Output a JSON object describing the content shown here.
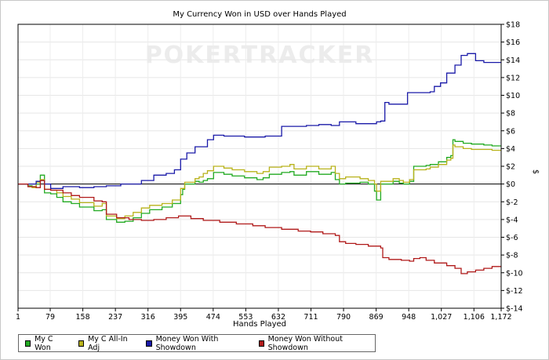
{
  "chart_data": {
    "type": "line",
    "title": "My Currency Won in USD over Hands Played",
    "xlabel": "Hands Played",
    "ylabel": "$",
    "watermark": "POKERTRACKER",
    "xlim": [
      1,
      1172
    ],
    "ylim": [
      -14,
      18
    ],
    "x_ticks": [
      1,
      79,
      158,
      237,
      316,
      395,
      474,
      553,
      632,
      711,
      790,
      869,
      948,
      1027,
      1106,
      1172
    ],
    "x_tick_labels": [
      "1",
      "79",
      "158",
      "237",
      "316",
      "395",
      "474",
      "553",
      "632",
      "711",
      "790",
      "869",
      "948",
      "1,027",
      "1,106",
      "1,172"
    ],
    "y_ticks": [
      -14,
      -12,
      -10,
      -8,
      -6,
      -4,
      -2,
      0,
      2,
      4,
      6,
      8,
      10,
      12,
      14,
      16,
      18
    ],
    "y_tick_labels": [
      "$-14",
      "$-12",
      "$-10",
      "$-8",
      "$-6",
      "$-4",
      "$-2",
      "$0",
      "$2",
      "$4",
      "$6",
      "$8",
      "$10",
      "$12",
      "$14",
      "$16",
      "$18"
    ],
    "grid": true,
    "legend_position": "bottom-left",
    "series": [
      {
        "name": "My C Won",
        "color": "#22aa22",
        "points": [
          [
            1,
            0
          ],
          [
            25,
            -0.2
          ],
          [
            35,
            -0.3
          ],
          [
            45,
            0
          ],
          [
            55,
            1
          ],
          [
            65,
            -1
          ],
          [
            80,
            -1.1
          ],
          [
            95,
            -1.5
          ],
          [
            110,
            -2
          ],
          [
            130,
            -2.2
          ],
          [
            150,
            -2.6
          ],
          [
            185,
            -3
          ],
          [
            205,
            -2.9
          ],
          [
            215,
            -4
          ],
          [
            240,
            -4.3
          ],
          [
            260,
            -4.2
          ],
          [
            280,
            -3.8
          ],
          [
            300,
            -3.3
          ],
          [
            320,
            -2.9
          ],
          [
            350,
            -2.6
          ],
          [
            375,
            -2.2
          ],
          [
            395,
            -1.2
          ],
          [
            400,
            -0.6
          ],
          [
            405,
            0
          ],
          [
            430,
            0.3
          ],
          [
            440,
            0.2
          ],
          [
            450,
            0.4
          ],
          [
            460,
            0.6
          ],
          [
            475,
            1.3
          ],
          [
            500,
            1.1
          ],
          [
            520,
            0.9
          ],
          [
            550,
            0.7
          ],
          [
            580,
            0.5
          ],
          [
            595,
            0.7
          ],
          [
            610,
            1.1
          ],
          [
            640,
            1.3
          ],
          [
            660,
            1.4
          ],
          [
            670,
            1
          ],
          [
            700,
            1.4
          ],
          [
            730,
            1.1
          ],
          [
            760,
            1.3
          ],
          [
            770,
            0.5
          ],
          [
            780,
            0
          ],
          [
            795,
            0.1
          ],
          [
            830,
            0.2
          ],
          [
            850,
            0
          ],
          [
            865,
            -0.8
          ],
          [
            870,
            -1.8
          ],
          [
            880,
            0
          ],
          [
            910,
            0.3
          ],
          [
            925,
            0.1
          ],
          [
            935,
            0
          ],
          [
            950,
            0.3
          ],
          [
            960,
            2
          ],
          [
            975,
            2
          ],
          [
            990,
            2.1
          ],
          [
            1000,
            2.2
          ],
          [
            1020,
            2.5
          ],
          [
            1040,
            3
          ],
          [
            1050,
            3.2
          ],
          [
            1055,
            5
          ],
          [
            1060,
            4.8
          ],
          [
            1080,
            4.6
          ],
          [
            1100,
            4.5
          ],
          [
            1130,
            4.4
          ],
          [
            1150,
            4.3
          ],
          [
            1172,
            4.3
          ]
        ]
      },
      {
        "name": "My C All-In Adj",
        "color": "#b8b21a",
        "points": [
          [
            1,
            0
          ],
          [
            25,
            -0.3
          ],
          [
            35,
            -0.4
          ],
          [
            45,
            0.2
          ],
          [
            55,
            0.5
          ],
          [
            65,
            -0.6
          ],
          [
            80,
            -0.7
          ],
          [
            95,
            -1
          ],
          [
            110,
            -1.4
          ],
          [
            130,
            -1.7
          ],
          [
            150,
            -2.1
          ],
          [
            185,
            -2.5
          ],
          [
            205,
            -2.2
          ],
          [
            215,
            -3.6
          ],
          [
            240,
            -3.9
          ],
          [
            260,
            -3.6
          ],
          [
            280,
            -3.2
          ],
          [
            300,
            -2.7
          ],
          [
            320,
            -2.4
          ],
          [
            350,
            -2.2
          ],
          [
            375,
            -1.8
          ],
          [
            395,
            -0.5
          ],
          [
            405,
            0.2
          ],
          [
            430,
            0.6
          ],
          [
            440,
            0.8
          ],
          [
            450,
            1.2
          ],
          [
            460,
            1.5
          ],
          [
            475,
            2
          ],
          [
            500,
            1.8
          ],
          [
            520,
            1.6
          ],
          [
            550,
            1.4
          ],
          [
            580,
            1.2
          ],
          [
            595,
            1.4
          ],
          [
            610,
            1.9
          ],
          [
            640,
            2
          ],
          [
            660,
            2.2
          ],
          [
            670,
            1.7
          ],
          [
            700,
            2
          ],
          [
            730,
            1.7
          ],
          [
            760,
            2
          ],
          [
            770,
            1.2
          ],
          [
            780,
            0.6
          ],
          [
            795,
            0.8
          ],
          [
            830,
            0.6
          ],
          [
            850,
            0.4
          ],
          [
            865,
            0
          ],
          [
            870,
            -0.8
          ],
          [
            880,
            0.3
          ],
          [
            910,
            0.6
          ],
          [
            925,
            0.4
          ],
          [
            935,
            0.2
          ],
          [
            950,
            0.5
          ],
          [
            960,
            1.6
          ],
          [
            975,
            1.6
          ],
          [
            990,
            1.7
          ],
          [
            1000,
            1.9
          ],
          [
            1020,
            2.2
          ],
          [
            1040,
            2.7
          ],
          [
            1050,
            2.9
          ],
          [
            1055,
            4.4
          ],
          [
            1060,
            4.2
          ],
          [
            1080,
            4
          ],
          [
            1100,
            3.9
          ],
          [
            1130,
            3.9
          ],
          [
            1150,
            3.8
          ],
          [
            1172,
            3.8
          ]
        ]
      },
      {
        "name": "Money Won With Showdown",
        "color": "#1a1aa8",
        "points": [
          [
            1,
            0
          ],
          [
            35,
            0
          ],
          [
            45,
            0.3
          ],
          [
            55,
            0.4
          ],
          [
            65,
            0
          ],
          [
            80,
            -0.5
          ],
          [
            110,
            -0.3
          ],
          [
            150,
            -0.4
          ],
          [
            185,
            -0.3
          ],
          [
            215,
            -0.2
          ],
          [
            250,
            0
          ],
          [
            280,
            0
          ],
          [
            300,
            0.4
          ],
          [
            330,
            1
          ],
          [
            360,
            1.2
          ],
          [
            380,
            1.6
          ],
          [
            395,
            2.8
          ],
          [
            410,
            3.5
          ],
          [
            430,
            4.2
          ],
          [
            460,
            5
          ],
          [
            475,
            5.5
          ],
          [
            500,
            5.4
          ],
          [
            550,
            5.3
          ],
          [
            600,
            5.4
          ],
          [
            640,
            6.5
          ],
          [
            700,
            6.6
          ],
          [
            730,
            6.7
          ],
          [
            760,
            6.6
          ],
          [
            780,
            7
          ],
          [
            820,
            6.8
          ],
          [
            870,
            7
          ],
          [
            880,
            7.1
          ],
          [
            890,
            9.2
          ],
          [
            900,
            9
          ],
          [
            930,
            9
          ],
          [
            945,
            10.3
          ],
          [
            960,
            10.3
          ],
          [
            1000,
            10.4
          ],
          [
            1010,
            11
          ],
          [
            1025,
            11.4
          ],
          [
            1040,
            12.5
          ],
          [
            1060,
            13.4
          ],
          [
            1075,
            14.5
          ],
          [
            1090,
            14.7
          ],
          [
            1110,
            13.9
          ],
          [
            1130,
            13.7
          ],
          [
            1172,
            13.7
          ]
        ]
      },
      {
        "name": "Money Won Without Showdown",
        "color": "#b01a1a",
        "points": [
          [
            1,
            0
          ],
          [
            25,
            -0.3
          ],
          [
            45,
            -0.4
          ],
          [
            55,
            0.4
          ],
          [
            65,
            -0.6
          ],
          [
            80,
            -0.7
          ],
          [
            110,
            -1
          ],
          [
            130,
            -1.3
          ],
          [
            150,
            -1.5
          ],
          [
            185,
            -1.9
          ],
          [
            205,
            -2
          ],
          [
            215,
            -3.4
          ],
          [
            240,
            -3.8
          ],
          [
            270,
            -4
          ],
          [
            300,
            -4.1
          ],
          [
            330,
            -4
          ],
          [
            360,
            -3.8
          ],
          [
            390,
            -3.6
          ],
          [
            420,
            -3.9
          ],
          [
            450,
            -4.1
          ],
          [
            490,
            -4.3
          ],
          [
            530,
            -4.5
          ],
          [
            570,
            -4.7
          ],
          [
            600,
            -4.9
          ],
          [
            640,
            -5.1
          ],
          [
            680,
            -5.3
          ],
          [
            710,
            -5.4
          ],
          [
            740,
            -5.6
          ],
          [
            770,
            -5.8
          ],
          [
            780,
            -6.5
          ],
          [
            795,
            -6.7
          ],
          [
            820,
            -6.8
          ],
          [
            850,
            -7
          ],
          [
            880,
            -7.2
          ],
          [
            885,
            -8.3
          ],
          [
            900,
            -8.5
          ],
          [
            930,
            -8.6
          ],
          [
            950,
            -8.7
          ],
          [
            960,
            -8.4
          ],
          [
            975,
            -8.3
          ],
          [
            990,
            -8.6
          ],
          [
            1010,
            -8.9
          ],
          [
            1040,
            -9.2
          ],
          [
            1060,
            -9.5
          ],
          [
            1075,
            -10.1
          ],
          [
            1090,
            -9.9
          ],
          [
            1110,
            -9.7
          ],
          [
            1130,
            -9.5
          ],
          [
            1150,
            -9.3
          ],
          [
            1172,
            -9.3
          ]
        ]
      }
    ]
  }
}
